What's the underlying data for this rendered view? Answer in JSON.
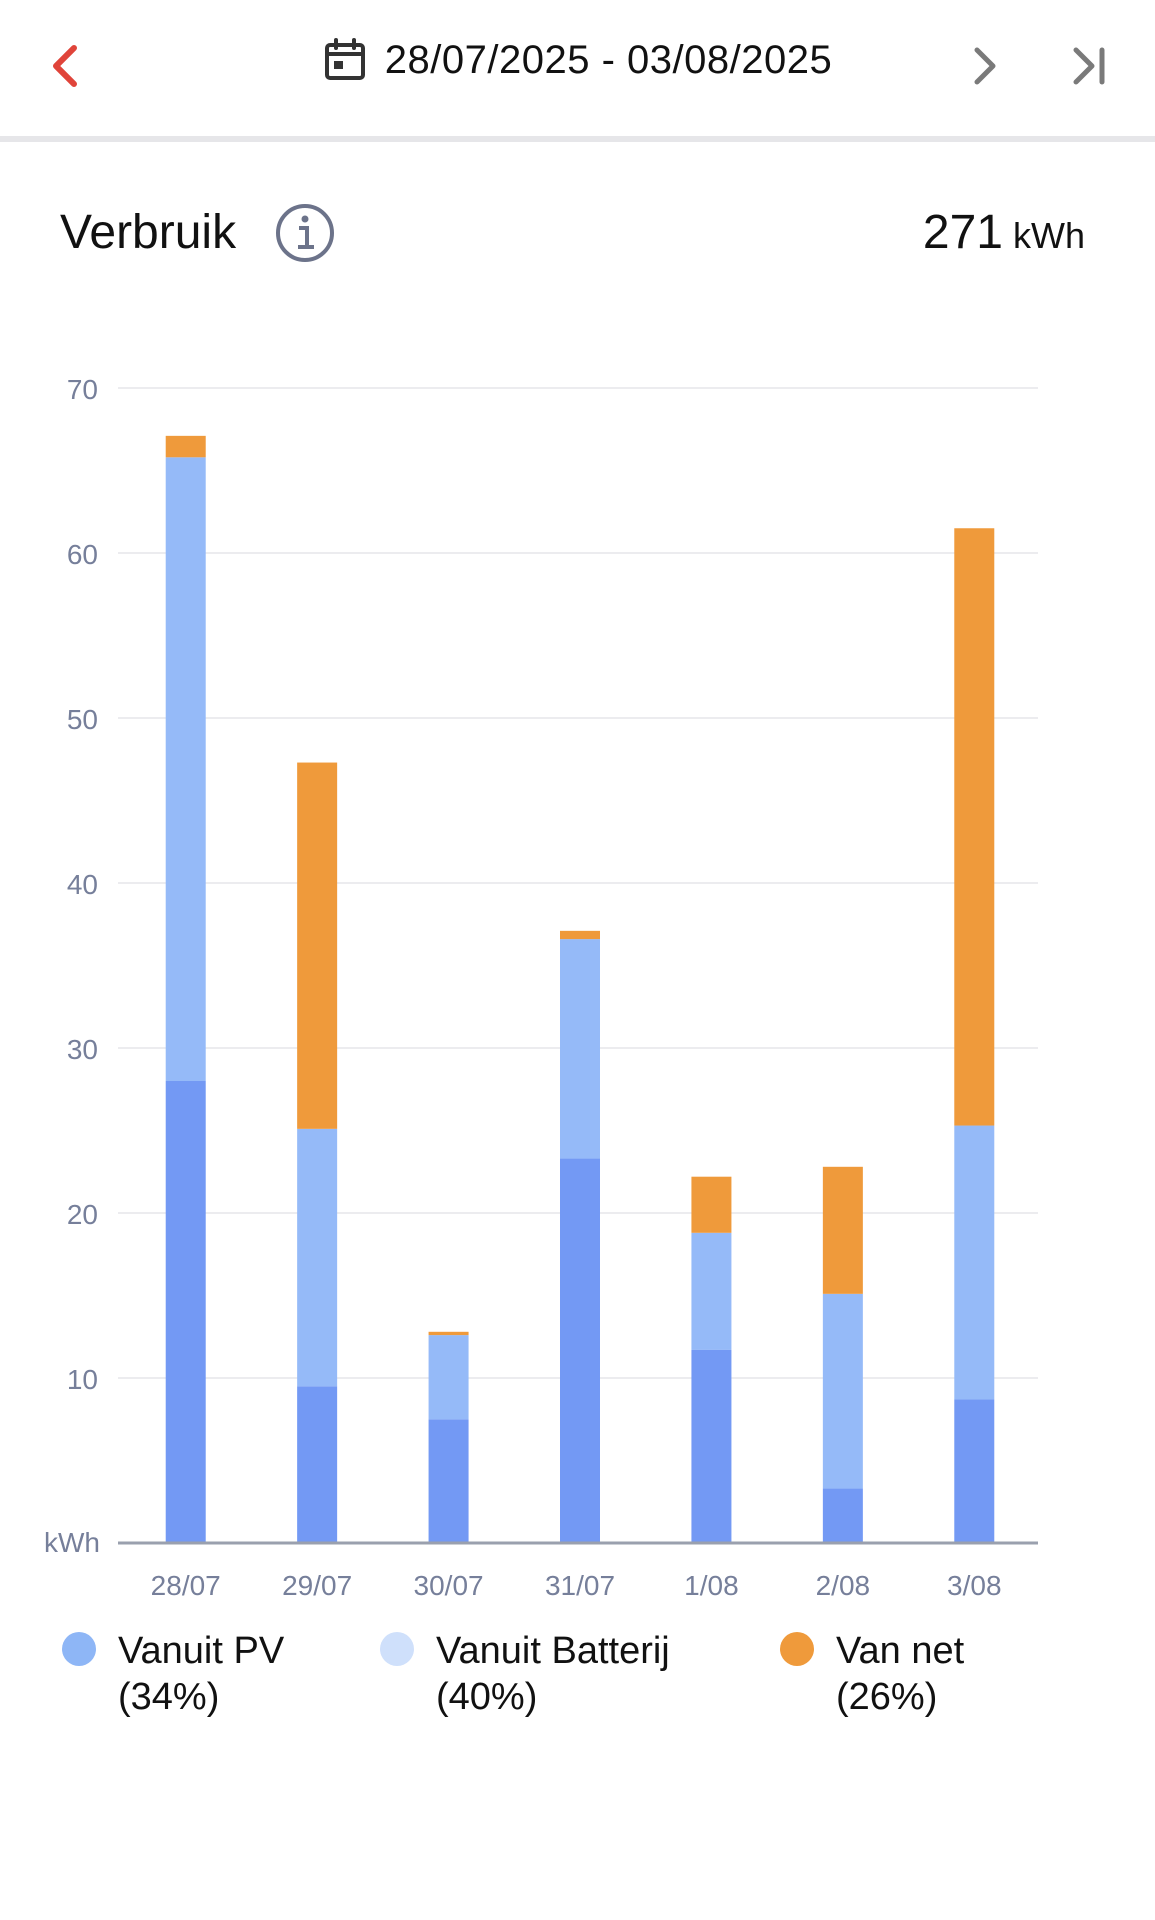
{
  "header": {
    "date_range": "28/07/2025 - 03/08/2025",
    "icons": {
      "back": "chevron-left-icon",
      "calendar": "calendar-icon",
      "next": "chevron-right-icon",
      "last": "skip-to-end-icon"
    }
  },
  "section": {
    "title": "Verbruik",
    "total_value": "271",
    "total_unit": "kWh"
  },
  "legend": [
    {
      "label": "Vanuit PV",
      "share": "(34%)",
      "color": "#8eb6f6"
    },
    {
      "label": "Vanuit Batterij",
      "share": "(40%)",
      "color": "#cfe0fb"
    },
    {
      "label": "Van net",
      "share": "(26%)",
      "color": "#ef9a3b"
    }
  ],
  "colors": {
    "accent_back": "#e0443a",
    "pv": "#7399f4",
    "battery": "#95baf8",
    "grid": "#ef9a3b",
    "axis_text": "#767f9a"
  },
  "chart_data": {
    "type": "bar",
    "stacked": true,
    "categories": [
      "28/07",
      "29/07",
      "30/07",
      "31/07",
      "1/08",
      "2/08",
      "3/08"
    ],
    "series": [
      {
        "name": "Vanuit PV",
        "values": [
          28.0,
          9.5,
          7.5,
          23.3,
          11.7,
          3.3,
          8.7
        ]
      },
      {
        "name": "Vanuit Batterij",
        "values": [
          37.8,
          15.6,
          5.1,
          13.3,
          7.1,
          11.8,
          16.6
        ]
      },
      {
        "name": "Van net",
        "values": [
          1.3,
          22.2,
          0.2,
          0.5,
          3.4,
          7.7,
          36.2
        ]
      }
    ],
    "ylabel": "kWh",
    "ylim": [
      0,
      70
    ],
    "yticks": [
      10,
      20,
      30,
      40,
      50,
      60,
      70
    ],
    "grid": true
  }
}
